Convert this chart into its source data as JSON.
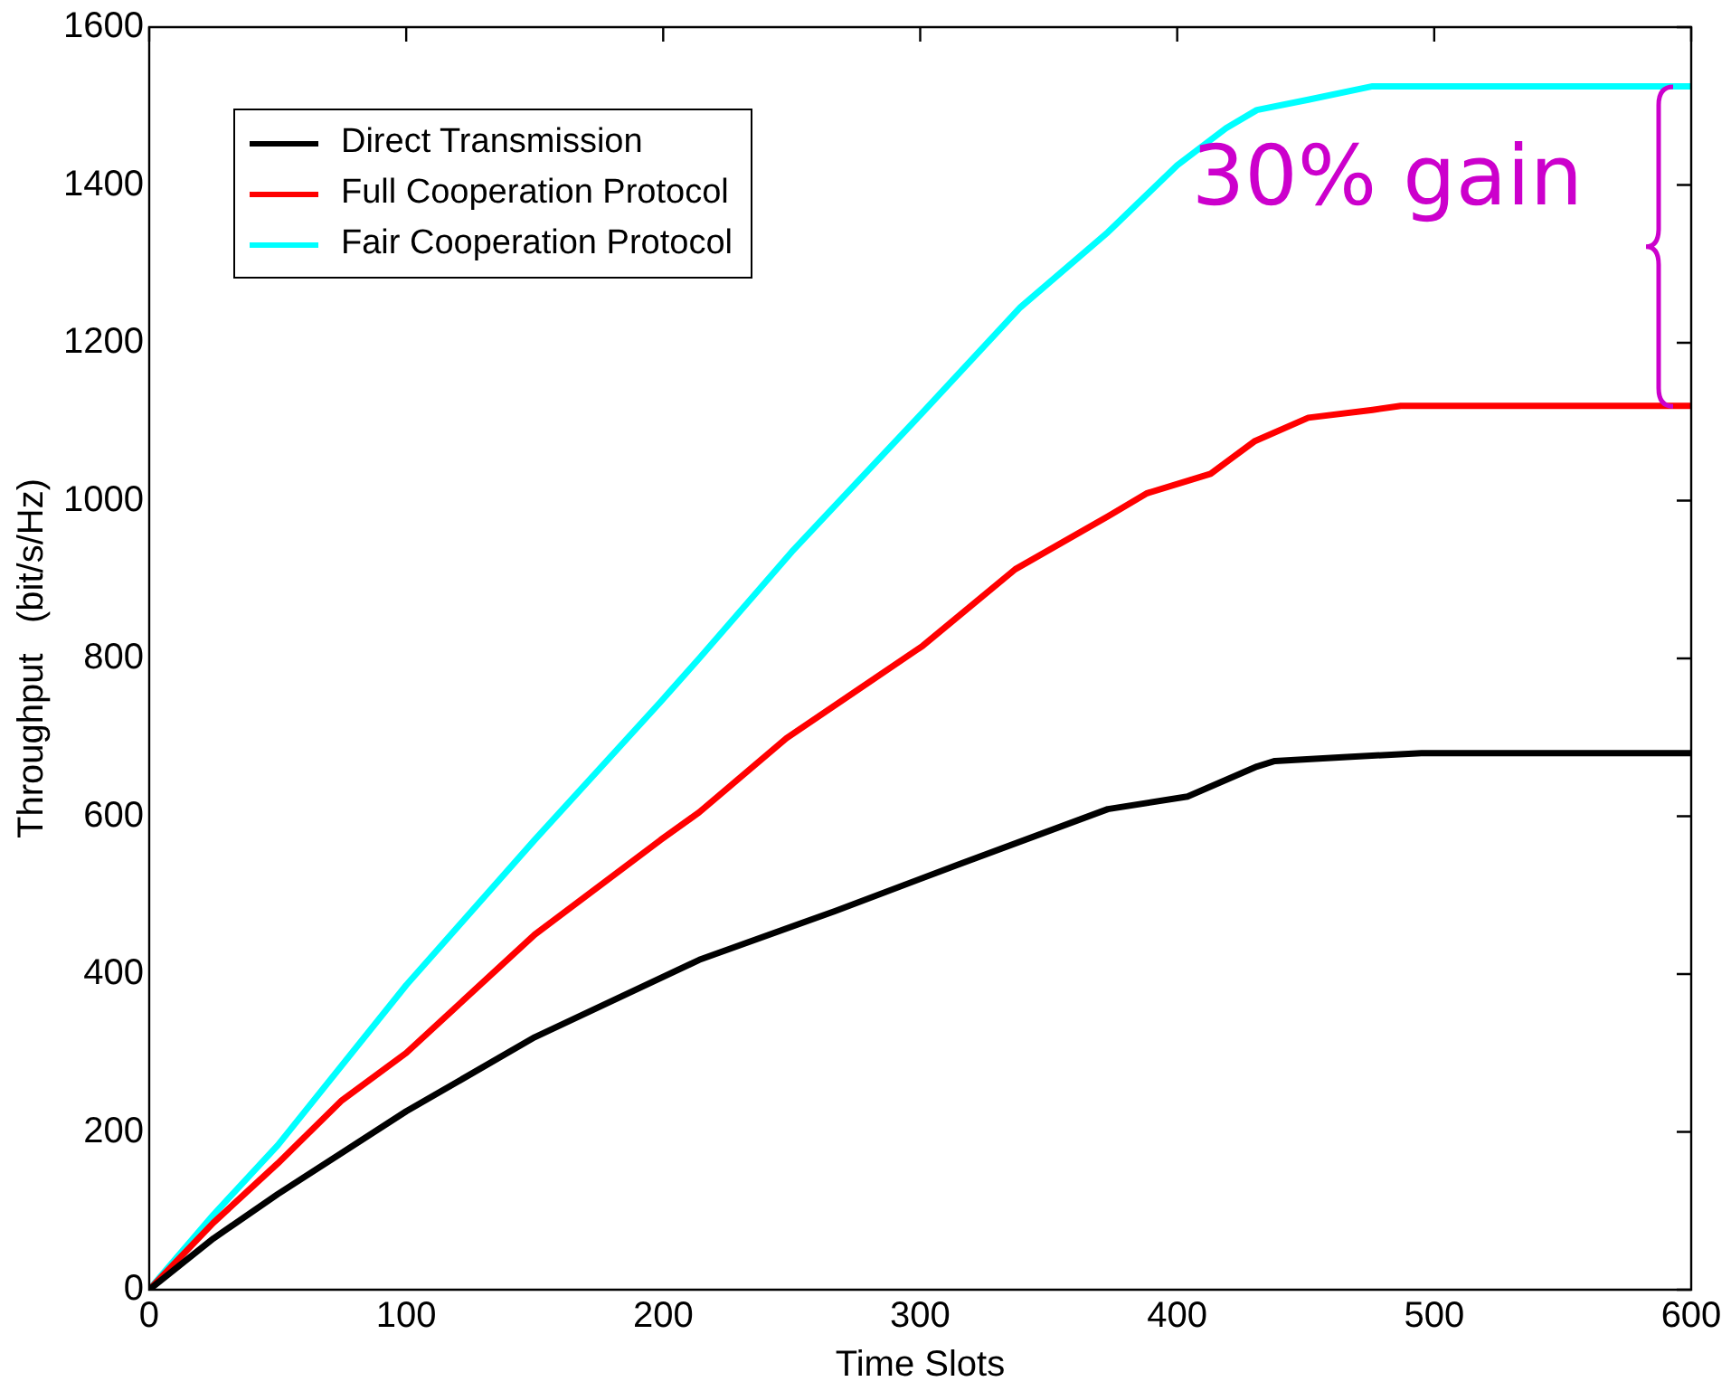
{
  "chart_data": {
    "type": "line",
    "xlabel": "Time Slots",
    "ylabel": "Throughput   (bit/s/Hz)",
    "xlim": [
      0,
      600
    ],
    "xticks": [
      0,
      100,
      200,
      300,
      400,
      500,
      600
    ],
    "ylim": [
      0,
      1600
    ],
    "yticks": [
      0,
      200,
      400,
      600,
      800,
      1000,
      1200,
      1400,
      1600
    ],
    "grid": false,
    "legend": "top left",
    "marker": "none",
    "line_style": "solid",
    "annotations": [
      {
        "text": "30% gain",
        "x": 600,
        "y": 1525
      }
    ],
    "series": [
      {
        "name": "Direct Transmission",
        "color": "#000000",
        "x": [
          0,
          25,
          50,
          100,
          150,
          214,
          267,
          315,
          373,
          404,
          431,
          438,
          466,
          495,
          600
        ],
        "values": [
          0,
          65,
          121,
          226,
          320,
          418,
          480,
          539,
          609,
          625,
          663,
          670,
          675,
          680,
          680
        ]
      },
      {
        "name": "Full Cooperation Protocol",
        "color": "#ff0000",
        "x": [
          0,
          25,
          50,
          75,
          100,
          150,
          199,
          214,
          248,
          301,
          337,
          373,
          388,
          413,
          430,
          451,
          476,
          487,
          600
        ],
        "values": [
          0,
          85,
          160,
          240,
          300,
          450,
          570,
          605,
          699,
          816,
          913,
          980,
          1009,
          1034,
          1075,
          1105,
          1115,
          1120,
          1120
        ]
      },
      {
        "name": "Fair Cooperation Protocol",
        "color": "#00ffff",
        "x": [
          0,
          25,
          50,
          100,
          150,
          199,
          214,
          250,
          301,
          339,
          373,
          400,
          419,
          431,
          451,
          476,
          600
        ],
        "values": [
          0,
          95,
          183,
          386,
          570,
          745,
          800,
          935,
          1112,
          1245,
          1340,
          1425,
          1472,
          1495,
          1508,
          1525,
          1525
        ]
      }
    ]
  }
}
